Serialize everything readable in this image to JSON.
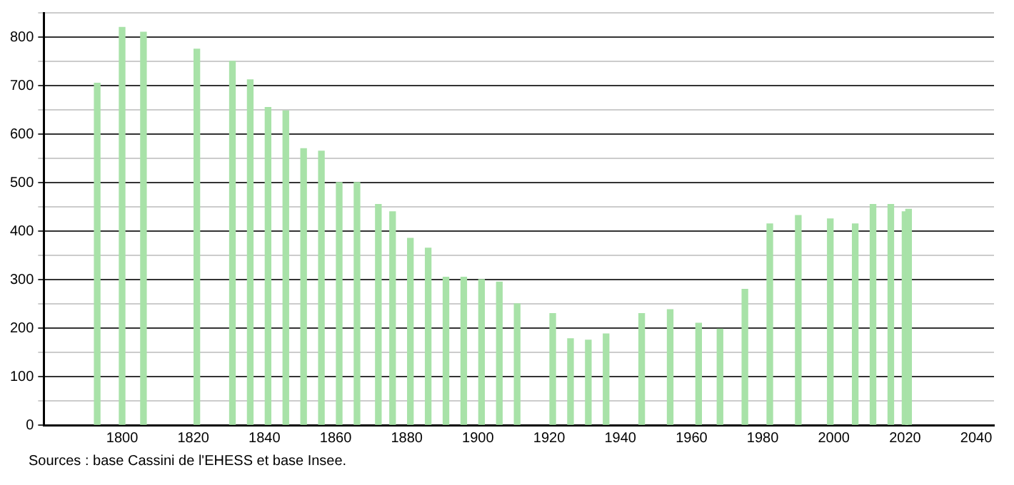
{
  "chart_data": {
    "type": "bar",
    "x": [
      1793,
      1800,
      1806,
      1821,
      1831,
      1836,
      1841,
      1846,
      1851,
      1856,
      1861,
      1866,
      1872,
      1876,
      1881,
      1886,
      1891,
      1896,
      1901,
      1906,
      1911,
      1921,
      1926,
      1931,
      1936,
      1946,
      1954,
      1962,
      1968,
      1975,
      1982,
      1990,
      1999,
      2006,
      2011,
      2016,
      2020,
      2021
    ],
    "values": [
      705,
      820,
      810,
      775,
      750,
      712,
      655,
      648,
      570,
      565,
      500,
      500,
      455,
      440,
      385,
      365,
      305,
      305,
      300,
      295,
      250,
      230,
      178,
      175,
      188,
      230,
      238,
      210,
      198,
      280,
      415,
      432,
      425,
      415,
      455,
      455,
      440,
      445
    ],
    "color": "#a8e2a8",
    "xlim": [
      1778,
      2045
    ],
    "xticks": [
      1800,
      1820,
      1840,
      1860,
      1880,
      1900,
      1920,
      1940,
      1960,
      1980,
      2000,
      2020,
      2040
    ],
    "ylim": [
      0,
      850
    ],
    "yticks": [
      0,
      {
        "value": 50,
        "label": null
      },
      100,
      {
        "value": 150,
        "label": null
      },
      200,
      {
        "value": 250,
        "label": null
      },
      300,
      {
        "value": 350,
        "label": null
      },
      400,
      {
        "value": 450,
        "label": null
      },
      500,
      {
        "value": 550,
        "label": null
      },
      600,
      {
        "value": 650,
        "label": null
      },
      700,
      {
        "value": 750,
        "label": null
      },
      800,
      {
        "value": 850,
        "label": null
      }
    ],
    "grid": "y",
    "legend": false,
    "annotations": [
      "Sources : base Cassini de l'EHESS et base Insee."
    ]
  }
}
